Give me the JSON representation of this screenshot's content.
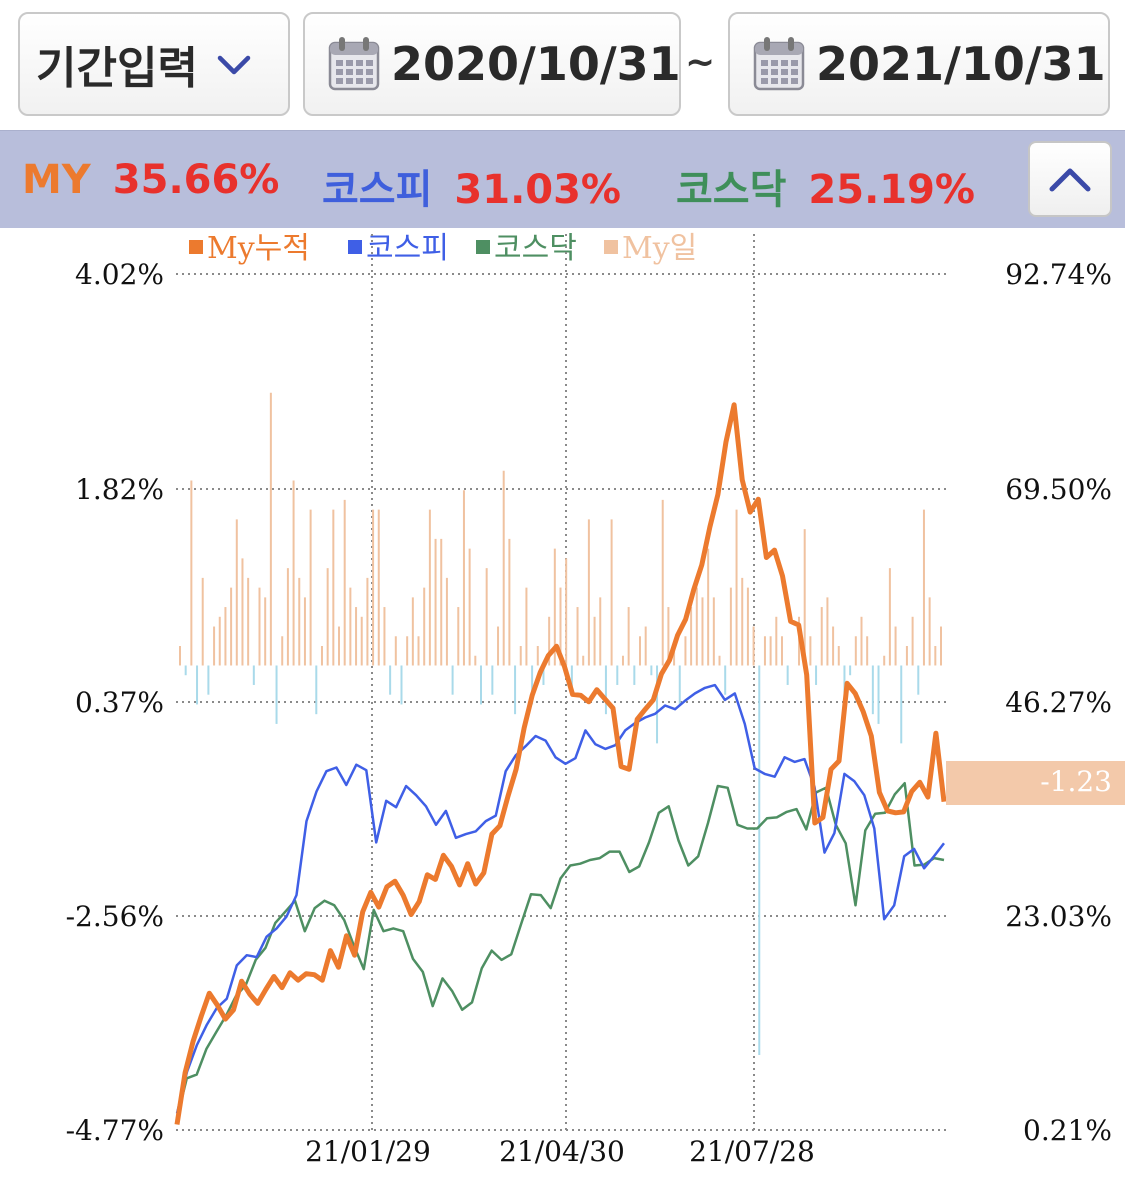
{
  "toolbar": {
    "period_label": "기간입력",
    "start_date": "2020/10/31",
    "separator": "~",
    "end_date": "2021/10/31"
  },
  "summary": {
    "items": [
      {
        "label": "MY",
        "value": "35.66%",
        "color": "#ec7a2e"
      },
      {
        "label": "코스피",
        "value": "31.03%",
        "color": "#3f5fdc"
      },
      {
        "label": "코스닥",
        "value": "25.19%",
        "color": "#3f8f5a"
      }
    ],
    "value_color": "#e8312c",
    "collapse_icon": "chevron-up-icon"
  },
  "chart_data": {
    "type": "line",
    "legend": [
      {
        "name": "My누적",
        "color": "#ec7a2e"
      },
      {
        "name": "코스피",
        "color": "#3f5fe6"
      },
      {
        "name": "코스닥",
        "color": "#4e8f62"
      },
      {
        "name": "My일",
        "color": "#f0c2a0"
      }
    ],
    "left_axis": {
      "ticks": [
        "4.02%",
        "1.82%",
        "0.37%",
        "-2.56%",
        "-4.77%"
      ],
      "values": [
        4.02,
        1.82,
        0.37,
        -2.56,
        -4.77
      ]
    },
    "right_axis": {
      "ticks": [
        "92.74%",
        "69.50%",
        "46.27%",
        "23.03%",
        "0.21%"
      ],
      "values": [
        92.74,
        69.5,
        46.27,
        23.03,
        0.21
      ]
    },
    "x_ticks": [
      "21/01/29",
      "21/04/30",
      "21/07/28"
    ],
    "last_value_badge": "-1.23",
    "series": [
      {
        "name": "My누적",
        "unit": "% (right axis)",
        "values": [
          0.8,
          6.4,
          9.8,
          12.5,
          15.0,
          13.7,
          12.2,
          13.2,
          16.3,
          14.9,
          13.9,
          15.4,
          16.8,
          15.6,
          17.2,
          16.4,
          17.1,
          17.0,
          16.4,
          19.6,
          17.8,
          21.2,
          19.1,
          23.8,
          25.9,
          24.3,
          26.5,
          27.1,
          25.6,
          23.5,
          24.9,
          27.8,
          27.3,
          29.9,
          28.7,
          26.7,
          29.0,
          26.8,
          28.0,
          32.2,
          33.1,
          36.3,
          39.2,
          43.7,
          47.2,
          49.7,
          51.5,
          52.5,
          50.3,
          47.3,
          47.2,
          46.5,
          47.8,
          46.8,
          45.8,
          39.5,
          39.2,
          44.6,
          45.7,
          46.7,
          49.5,
          51.0,
          53.7,
          55.4,
          58.6,
          61.3,
          65.4,
          68.9,
          74.6,
          78.6,
          70.5,
          67.0,
          68.4,
          62.1,
          62.9,
          60.1,
          55.2,
          54.8,
          49.4,
          33.4,
          34.0,
          39.2,
          40.1,
          48.5,
          47.4,
          45.4,
          42.8,
          36.7,
          34.7,
          34.5,
          34.6,
          36.8,
          37.8,
          36.2,
          43.1,
          35.7
        ]
      },
      {
        "name": "코스피",
        "unit": "% (right axis)",
        "values": [
          2.0,
          6.5,
          9.4,
          11.6,
          13.4,
          14.4,
          18.0,
          19.1,
          18.9,
          21.1,
          22.0,
          23.3,
          25.6,
          33.6,
          36.8,
          39.0,
          39.4,
          37.5,
          39.7,
          39.1,
          31.3,
          35.8,
          35.1,
          37.4,
          36.4,
          35.2,
          33.2,
          34.7,
          31.8,
          32.2,
          32.5,
          33.6,
          34.2,
          39.0,
          40.7,
          41.7,
          42.8,
          42.3,
          40.5,
          39.8,
          40.4,
          43.4,
          41.9,
          41.4,
          41.8,
          43.4,
          44.2,
          44.8,
          45.2,
          46.1,
          45.7,
          46.6,
          47.4,
          48.0,
          48.3,
          46.7,
          47.4,
          44.1,
          39.3,
          38.7,
          38.4,
          40.5,
          40.0,
          40.3,
          37.3,
          30.2,
          32.3,
          38.7,
          37.9,
          36.4,
          32.8,
          23.0,
          24.5,
          29.8,
          30.6,
          28.5,
          29.8,
          31.2
        ]
      },
      {
        "name": "코스닥",
        "unit": "% (right axis)",
        "values": [
          1.5,
          5.8,
          6.2,
          9.0,
          10.8,
          12.6,
          14.7,
          15.9,
          18.6,
          19.9,
          22.6,
          23.8,
          25.0,
          21.7,
          24.2,
          25.0,
          24.5,
          22.9,
          20.1,
          17.6,
          24.0,
          21.7,
          22.0,
          21.7,
          18.7,
          17.3,
          13.6,
          16.6,
          15.2,
          13.2,
          14.0,
          17.7,
          19.6,
          18.6,
          19.2,
          22.5,
          25.7,
          25.6,
          24.2,
          27.4,
          28.8,
          29.0,
          29.4,
          29.6,
          30.3,
          30.3,
          28.1,
          28.7,
          31.3,
          34.5,
          35.2,
          31.5,
          28.8,
          29.8,
          33.4,
          37.4,
          37.2,
          33.2,
          32.8,
          32.8,
          33.9,
          34.0,
          34.6,
          34.9,
          32.7,
          36.7,
          37.2,
          33.2,
          31.2,
          24.5,
          32.6,
          34.4,
          34.5,
          36.5,
          37.7,
          28.8,
          28.9,
          29.6,
          29.4
        ]
      },
      {
        "name": "My일",
        "unit": "% (left axis)",
        "values": [
          0.2,
          -0.1,
          1.9,
          -0.4,
          0.9,
          -0.3,
          0.4,
          0.5,
          0.6,
          0.8,
          1.5,
          1.1,
          0.9,
          -0.2,
          0.8,
          0.7,
          2.8,
          -0.6,
          0.3,
          1.0,
          1.9,
          0.9,
          0.7,
          1.6,
          -0.5,
          0.2,
          1.0,
          1.6,
          0.4,
          1.7,
          0.8,
          0.6,
          0.5,
          0.9,
          1.6,
          1.6,
          0.6,
          -0.3,
          0.3,
          -0.4,
          0.3,
          0.7,
          0.3,
          0.8,
          1.6,
          1.3,
          1.3,
          0.9,
          -0.3,
          0.6,
          1.8,
          1.2,
          0.1,
          -0.4,
          1.0,
          -0.3,
          0.4,
          2.0,
          1.3,
          -0.5,
          0.2,
          0.8,
          -0.4,
          0.2,
          -0.2,
          0.5,
          1.2,
          0.8,
          1.1,
          -0.3,
          0.6,
          0.1,
          1.5,
          0.5,
          0.7,
          -0.5,
          1.5,
          -0.2,
          0.1,
          0.6,
          -0.2,
          0.3,
          0.4,
          -0.1,
          -0.8,
          1.7,
          0.6,
          0.2,
          -0.4,
          0.3,
          0.6,
          0.8,
          0.7,
          1.2,
          0.7,
          0.1,
          -0.3,
          0.8,
          1.6,
          0.9,
          0.8,
          0.4,
          -4.0,
          0.3,
          0.3,
          0.5,
          0.3,
          -0.2,
          0.0,
          0.5,
          1.4,
          0.3,
          -0.2,
          0.6,
          0.7,
          0.4,
          0.2,
          -0.3,
          -0.1,
          0.3,
          0.5,
          0.3,
          -0.5,
          -0.6,
          0.1,
          1.0,
          0.4,
          -0.8,
          0.2,
          0.5,
          -0.3,
          1.6,
          0.7,
          0.2,
          0.4
        ]
      }
    ]
  }
}
